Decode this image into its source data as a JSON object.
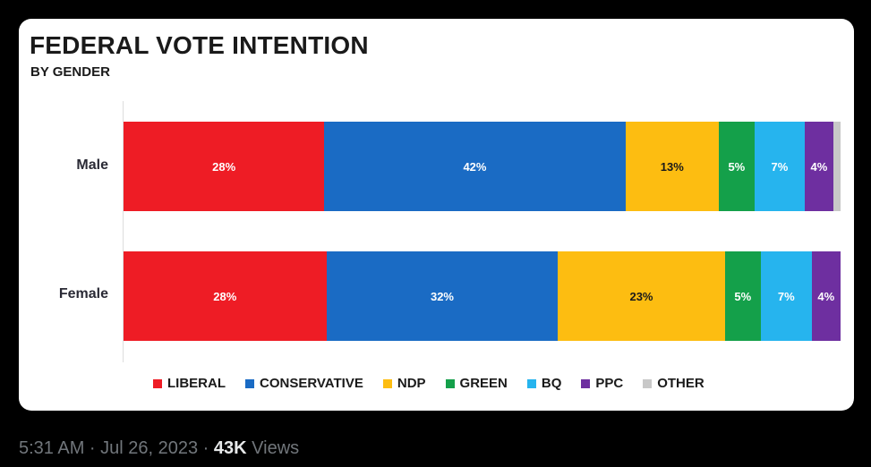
{
  "chart_data": {
    "type": "bar",
    "orientation": "horizontal",
    "stacked": true,
    "title": "FEDERAL VOTE INTENTION",
    "subtitle": "BY GENDER",
    "categories": [
      "Male",
      "Female"
    ],
    "series": [
      {
        "name": "LIBERAL",
        "color": "#ee1c25",
        "values": [
          28,
          28
        ],
        "labels": [
          "28%",
          "28%"
        ],
        "label_color": "#ffffff"
      },
      {
        "name": "CONSERVATIVE",
        "color": "#1a6bc4",
        "values": [
          42,
          32
        ],
        "labels": [
          "42%",
          "32%"
        ],
        "label_color": "#ffffff"
      },
      {
        "name": "NDP",
        "color": "#fdbd11",
        "values": [
          13,
          23
        ],
        "labels": [
          "13%",
          "23%"
        ],
        "label_color": "#1a1a1a"
      },
      {
        "name": "GREEN",
        "color": "#14a04a",
        "values": [
          5,
          5
        ],
        "labels": [
          "5%",
          "5%"
        ],
        "label_color": "#ffffff"
      },
      {
        "name": "BQ",
        "color": "#26b4ee",
        "values": [
          7,
          7
        ],
        "labels": [
          "7%",
          "7%"
        ],
        "label_color": "#ffffff"
      },
      {
        "name": "PPC",
        "color": "#6e2fa0",
        "values": [
          4,
          4
        ],
        "labels": [
          "4%",
          "4%"
        ],
        "label_color": "#ffffff"
      },
      {
        "name": "OTHER",
        "color": "#c8c8c8",
        "values": [
          1,
          0
        ],
        "labels": [
          "",
          ""
        ],
        "label_color": "#1a1a1a"
      }
    ],
    "xlim": [
      0,
      100
    ],
    "grid": false,
    "legend_position": "bottom"
  },
  "footer": {
    "timestamp": "5:31 AM · Jul 26, 2023 · ",
    "views_count": "43K",
    "views_label": " Views"
  }
}
